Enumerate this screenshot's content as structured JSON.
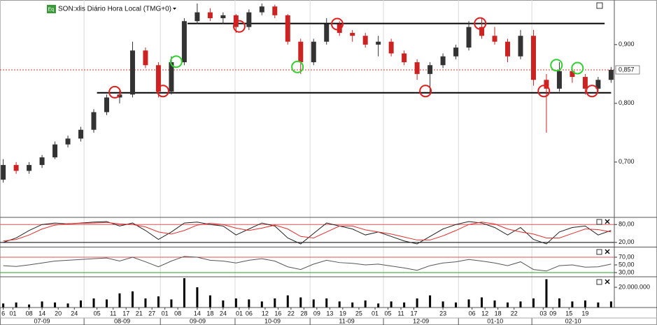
{
  "chart_data": [
    {
      "type": "candlestick",
      "title": "SON:xlis Diário Hora Local (TMG+0)",
      "icon_label": "Eq",
      "x": [
        1,
        5,
        9,
        13,
        17,
        21,
        25,
        29,
        33,
        37,
        41,
        45,
        49,
        53,
        57,
        61,
        65,
        69,
        73,
        77,
        81,
        85,
        89,
        93,
        97,
        101,
        105,
        109,
        113,
        117,
        121,
        125,
        129,
        133,
        137,
        141,
        145,
        149,
        153,
        157,
        161,
        165,
        169,
        173,
        177,
        181,
        185,
        189
      ],
      "open": [
        0.67,
        0.695,
        0.685,
        0.695,
        0.708,
        0.73,
        0.74,
        0.755,
        0.785,
        0.81,
        0.815,
        0.89,
        0.865,
        0.82,
        0.87,
        0.94,
        0.955,
        0.945,
        0.95,
        0.93,
        0.955,
        0.965,
        0.95,
        0.905,
        0.87,
        0.905,
        0.935,
        0.92,
        0.915,
        0.9,
        0.905,
        0.885,
        0.87,
        0.85,
        0.865,
        0.88,
        0.895,
        0.93,
        0.915,
        0.905,
        0.88,
        0.915,
        0.84,
        0.825,
        0.855,
        0.845,
        0.825,
        0.84
      ],
      "high": [
        0.705,
        0.7,
        0.7,
        0.712,
        0.735,
        0.745,
        0.76,
        0.79,
        0.815,
        0.825,
        0.905,
        0.895,
        0.87,
        0.88,
        0.945,
        0.97,
        0.962,
        0.955,
        0.952,
        0.96,
        0.97,
        0.968,
        0.952,
        0.91,
        0.91,
        0.945,
        0.94,
        0.925,
        0.92,
        0.915,
        0.91,
        0.89,
        0.875,
        0.87,
        0.885,
        0.9,
        0.94,
        0.945,
        0.93,
        0.91,
        0.925,
        0.925,
        0.85,
        0.87,
        0.865,
        0.85,
        0.845,
        0.862
      ],
      "low": [
        0.665,
        0.68,
        0.68,
        0.69,
        0.705,
        0.725,
        0.735,
        0.75,
        0.78,
        0.8,
        0.81,
        0.86,
        0.81,
        0.815,
        0.865,
        0.935,
        0.94,
        0.935,
        0.92,
        0.925,
        0.95,
        0.945,
        0.9,
        0.85,
        0.865,
        0.9,
        0.915,
        0.905,
        0.895,
        0.88,
        0.88,
        0.865,
        0.84,
        0.815,
        0.86,
        0.875,
        0.89,
        0.91,
        0.9,
        0.87,
        0.875,
        0.83,
        0.75,
        0.82,
        0.835,
        0.815,
        0.82,
        0.835
      ],
      "close": [
        0.695,
        0.685,
        0.695,
        0.708,
        0.73,
        0.74,
        0.755,
        0.785,
        0.81,
        0.815,
        0.89,
        0.865,
        0.82,
        0.87,
        0.94,
        0.955,
        0.945,
        0.95,
        0.93,
        0.955,
        0.965,
        0.95,
        0.905,
        0.87,
        0.905,
        0.935,
        0.92,
        0.915,
        0.9,
        0.905,
        0.885,
        0.87,
        0.85,
        0.865,
        0.88,
        0.895,
        0.93,
        0.915,
        0.905,
        0.88,
        0.915,
        0.84,
        0.825,
        0.855,
        0.845,
        0.825,
        0.84,
        0.857
      ],
      "up_color": "#333333",
      "down_color": "#cc2222",
      "xlim": [
        0,
        190
      ],
      "ylim": [
        0.607,
        0.976
      ],
      "yticks": [
        {
          "value": 0.7,
          "label": "0,700"
        },
        {
          "value": 0.8,
          "label": "0,800"
        },
        {
          "value": 0.9,
          "label": "0,900"
        }
      ],
      "xticks": [
        {
          "value": 1,
          "label": "6"
        },
        {
          "value": 4,
          "label": "01"
        },
        {
          "value": 9,
          "label": "08"
        },
        {
          "value": 13,
          "label": "14"
        },
        {
          "value": 18,
          "label": "20"
        },
        {
          "value": 23,
          "label": "24"
        },
        {
          "value": 30,
          "label": "05"
        },
        {
          "value": 35,
          "label": "11"
        },
        {
          "value": 39,
          "label": "17"
        },
        {
          "value": 43,
          "label": "21"
        },
        {
          "value": 47,
          "label": "27"
        },
        {
          "value": 51,
          "label": "01"
        },
        {
          "value": 55,
          "label": "08"
        },
        {
          "value": 61,
          "label": "14"
        },
        {
          "value": 65,
          "label": "18"
        },
        {
          "value": 69,
          "label": "24"
        },
        {
          "value": 74,
          "label": "01"
        },
        {
          "value": 77,
          "label": "06"
        },
        {
          "value": 82,
          "label": "12"
        },
        {
          "value": 86,
          "label": "16"
        },
        {
          "value": 90,
          "label": "22"
        },
        {
          "value": 94,
          "label": "28"
        },
        {
          "value": 98,
          "label": "09"
        },
        {
          "value": 102,
          "label": "13"
        },
        {
          "value": 106,
          "label": "19"
        },
        {
          "value": 111,
          "label": "25"
        },
        {
          "value": 116,
          "label": "01"
        },
        {
          "value": 120,
          "label": "05"
        },
        {
          "value": 124,
          "label": "11"
        },
        {
          "value": 128,
          "label": "17"
        },
        {
          "value": 137,
          "label": "23"
        },
        {
          "value": 146,
          "label": "06"
        },
        {
          "value": 150,
          "label": "12"
        },
        {
          "value": 154,
          "label": "18"
        },
        {
          "value": 159,
          "label": "22"
        },
        {
          "value": 168,
          "label": "03"
        },
        {
          "value": 171,
          "label": "09"
        },
        {
          "value": 176,
          "label": "15"
        },
        {
          "value": 181,
          "label": "19"
        }
      ],
      "month_ticks": [
        {
          "value": 0,
          "label": "07-09"
        },
        {
          "value": 26,
          "label": "08-09"
        },
        {
          "value": 49.6,
          "label": "09-09"
        },
        {
          "value": 72.7,
          "label": "10-09"
        },
        {
          "value": 95.9,
          "label": "11-09"
        },
        {
          "value": 118.6,
          "label": "12-09"
        },
        {
          "value": 141.8,
          "label": "01-10"
        },
        {
          "value": 164.5,
          "label": "02-10"
        }
      ],
      "grid": true,
      "levels": [
        {
          "value": 0.936,
          "x": [
            58,
            187
          ],
          "color": "#000000"
        },
        {
          "value": 0.818,
          "x": [
            30,
            189
          ],
          "color": "#000000"
        }
      ],
      "last_price": {
        "value": 0.857,
        "label": "0,857",
        "color": "#e03030"
      },
      "marker_groups": [
        {
          "color": "#e02020",
          "x": [
            35.5,
            50.4,
            74,
            104.3,
            131.6,
            148.5,
            168.2,
            183.1
          ],
          "y": [
            0.819,
            0.821,
            0.931,
            0.935,
            0.821,
            0.936,
            0.821,
            0.821
          ]
        },
        {
          "color": "#30d030",
          "x": [
            54.5,
            92,
            172.1,
            178.6
          ],
          "y": [
            0.871,
            0.862,
            0.865,
            0.86
          ]
        }
      ]
    },
    {
      "type": "line",
      "x": [
        1,
        5,
        9,
        13,
        17,
        21,
        25,
        29,
        33,
        37,
        41,
        45,
        49,
        53,
        57,
        61,
        65,
        69,
        73,
        77,
        81,
        85,
        89,
        93,
        97,
        101,
        105,
        109,
        113,
        117,
        121,
        125,
        129,
        133,
        137,
        141,
        145,
        149,
        153,
        157,
        161,
        165,
        169,
        173,
        177,
        181,
        185,
        189
      ],
      "series": [
        {
          "color": "#222222",
          "values": [
            20,
            35,
            60,
            80,
            85,
            82,
            85,
            88,
            90,
            75,
            85,
            60,
            30,
            55,
            85,
            88,
            80,
            75,
            45,
            65,
            85,
            75,
            35,
            15,
            50,
            85,
            75,
            65,
            45,
            55,
            40,
            25,
            15,
            40,
            65,
            80,
            90,
            85,
            70,
            45,
            70,
            30,
            15,
            55,
            70,
            75,
            45,
            60
          ]
        },
        {
          "color": "#e03030",
          "values": [
            25,
            30,
            45,
            65,
            78,
            83,
            84,
            85,
            87,
            82,
            80,
            72,
            55,
            48,
            60,
            78,
            84,
            80,
            68,
            60,
            68,
            78,
            65,
            40,
            35,
            55,
            75,
            75,
            62,
            55,
            48,
            38,
            28,
            28,
            42,
            60,
            80,
            88,
            82,
            65,
            55,
            48,
            35,
            35,
            50,
            65,
            63,
            55
          ]
        }
      ],
      "ylim": [
        5.6,
        101.6
      ],
      "yticks": [
        {
          "value": 20,
          "label": "20,00"
        },
        {
          "value": 80,
          "label": "80,00"
        }
      ],
      "ref_lines": [
        {
          "value": 80,
          "color": "#e05050"
        },
        {
          "value": 20,
          "color": "#000000"
        }
      ]
    },
    {
      "type": "line",
      "x": [
        1,
        5,
        9,
        13,
        17,
        21,
        25,
        29,
        33,
        37,
        41,
        45,
        49,
        53,
        57,
        61,
        65,
        69,
        73,
        77,
        81,
        85,
        89,
        93,
        97,
        101,
        105,
        109,
        113,
        117,
        121,
        125,
        129,
        133,
        137,
        141,
        145,
        149,
        153,
        157,
        161,
        165,
        169,
        173,
        177,
        181,
        185,
        189
      ],
      "series": [
        {
          "color": "#555555",
          "values": [
            48,
            46,
            50,
            55,
            60,
            62,
            64,
            66,
            68,
            60,
            70,
            58,
            45,
            60,
            72,
            70,
            62,
            60,
            55,
            62,
            66,
            60,
            45,
            38,
            52,
            62,
            56,
            54,
            50,
            52,
            47,
            42,
            36,
            48,
            55,
            58,
            64,
            60,
            55,
            48,
            58,
            38,
            34,
            48,
            50,
            44,
            45,
            52
          ]
        }
      ],
      "ylim": [
        20.9,
        93.6
      ],
      "yticks": [
        {
          "value": 30,
          "label": "30,00"
        },
        {
          "value": 50,
          "label": "50,00"
        },
        {
          "value": 70,
          "label": "70,00"
        }
      ],
      "ref_lines": [
        {
          "value": 70,
          "color": "#e05050"
        },
        {
          "value": 30,
          "color": "#20a020"
        }
      ]
    },
    {
      "type": "bar",
      "x": [
        1,
        5,
        9,
        13,
        17,
        21,
        25,
        29,
        33,
        37,
        41,
        45,
        49,
        53,
        57,
        61,
        65,
        69,
        73,
        77,
        81,
        85,
        89,
        93,
        97,
        101,
        105,
        109,
        113,
        117,
        121,
        125,
        129,
        133,
        137,
        141,
        145,
        149,
        153,
        157,
        161,
        165,
        169,
        173,
        177,
        181,
        185,
        189
      ],
      "values": [
        4000000,
        5000000,
        3000000,
        6000000,
        5000000,
        4000000,
        7000000,
        9000000,
        8000000,
        14000000,
        16000000,
        9000000,
        11000000,
        8000000,
        29000000,
        20000000,
        12000000,
        7000000,
        9000000,
        8000000,
        6000000,
        9000000,
        12000000,
        10000000,
        8000000,
        9000000,
        6000000,
        5000000,
        7000000,
        4000000,
        6000000,
        5000000,
        9000000,
        12000000,
        6000000,
        5000000,
        8000000,
        10000000,
        7000000,
        5000000,
        6000000,
        9000000,
        28000000,
        9000000,
        6000000,
        7000000,
        5000000,
        6000000
      ],
      "color": "#000000",
      "ylim": [
        0,
        29700000
      ],
      "yticks": [
        {
          "value": 20000000,
          "label": "20.000.000"
        }
      ]
    }
  ]
}
